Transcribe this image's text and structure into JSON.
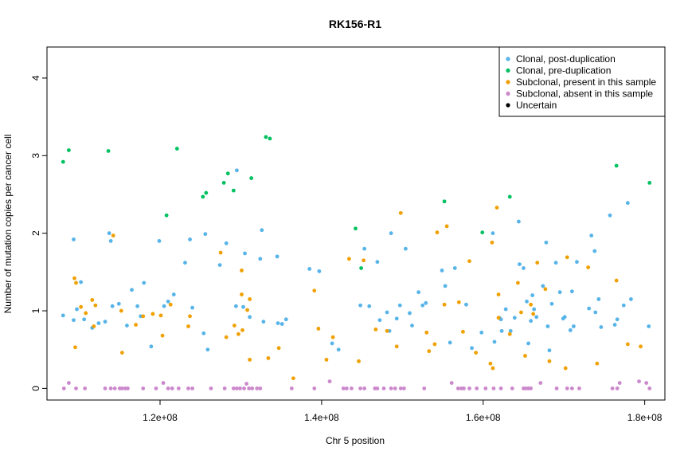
{
  "chart_data": {
    "type": "scatter",
    "title": "RK156-R1",
    "xlabel": "Chr 5 position",
    "ylabel": "Number of mutation copies per cancer cell",
    "xlim": [
      106000000,
      182500000
    ],
    "ylim": [
      -0.15,
      4.4
    ],
    "x_ticks": [
      120000000,
      140000000,
      160000000,
      180000000
    ],
    "x_tick_labels": [
      "1.2e+08",
      "1.4e+08",
      "1.6e+08",
      "1.8e+08"
    ],
    "y_ticks": [
      0,
      1,
      2,
      3,
      4
    ],
    "y_tick_labels": [
      "0",
      "1",
      "2",
      "3",
      "4"
    ],
    "grid": false,
    "legend_position": "top-right",
    "series": [
      {
        "name": "Clonal, post-duplication",
        "color": "#56B4E9",
        "points": [
          [
            108.0,
            0.94
          ],
          [
            109.3,
            1.92
          ],
          [
            109.3,
            0.88
          ],
          [
            109.7,
            1.02
          ],
          [
            110.2,
            1.37
          ],
          [
            110.6,
            0.89
          ],
          [
            111.6,
            0.78
          ],
          [
            112.4,
            0.84
          ],
          [
            113.2,
            0.86
          ],
          [
            113.7,
            2.0
          ],
          [
            113.9,
            1.9
          ],
          [
            114.1,
            1.06
          ],
          [
            114.9,
            1.09
          ],
          [
            115.9,
            0.81
          ],
          [
            116.5,
            1.27
          ],
          [
            117.2,
            1.06
          ],
          [
            117.6,
            0.93
          ],
          [
            118.0,
            1.36
          ],
          [
            118.9,
            0.54
          ],
          [
            119.9,
            1.9
          ],
          [
            120.5,
            1.06
          ],
          [
            121.0,
            1.12
          ],
          [
            121.7,
            1.21
          ],
          [
            123.1,
            1.62
          ],
          [
            123.7,
            1.92
          ],
          [
            124.0,
            1.04
          ],
          [
            125.4,
            0.71
          ],
          [
            125.6,
            1.99
          ],
          [
            125.9,
            0.5
          ],
          [
            127.4,
            1.59
          ],
          [
            128.2,
            1.87
          ],
          [
            129.4,
            1.06
          ],
          [
            129.5,
            2.81
          ],
          [
            130.3,
            1.05
          ],
          [
            130.5,
            1.74
          ],
          [
            131.1,
            0.92
          ],
          [
            132.4,
            1.67
          ],
          [
            132.6,
            2.04
          ],
          [
            132.8,
            0.86
          ],
          [
            134.5,
            1.7
          ],
          [
            134.6,
            0.84
          ],
          [
            135.1,
            0.83
          ],
          [
            135.6,
            0.89
          ],
          [
            138.5,
            1.54
          ],
          [
            139.7,
            1.51
          ],
          [
            141.3,
            0.58
          ],
          [
            142.1,
            0.5
          ],
          [
            144.8,
            1.07
          ],
          [
            145.3,
            1.8
          ],
          [
            145.9,
            1.06
          ],
          [
            146.9,
            1.63
          ],
          [
            147.2,
            0.88
          ],
          [
            148.1,
            0.98
          ],
          [
            148.4,
            0.74
          ],
          [
            148.6,
            2.0
          ],
          [
            149.3,
            0.9
          ],
          [
            149.7,
            1.07
          ],
          [
            150.4,
            1.8
          ],
          [
            150.9,
            0.97
          ],
          [
            151.2,
            0.81
          ],
          [
            152.0,
            1.24
          ],
          [
            152.5,
            1.07
          ],
          [
            152.9,
            1.1
          ],
          [
            154.9,
            1.52
          ],
          [
            155.3,
            1.32
          ],
          [
            155.9,
            0.59
          ],
          [
            156.5,
            1.55
          ],
          [
            157.9,
            1.08
          ],
          [
            158.6,
            0.52
          ],
          [
            159.8,
            0.72
          ],
          [
            161.2,
            2.0
          ],
          [
            161.4,
            0.6
          ],
          [
            162.0,
            0.91
          ],
          [
            162.2,
            0.89
          ],
          [
            162.3,
            0.74
          ],
          [
            162.8,
            1.02
          ],
          [
            163.4,
            0.74
          ],
          [
            163.9,
            0.91
          ],
          [
            164.4,
            2.15
          ],
          [
            164.5,
            1.6
          ],
          [
            165.0,
            1.55
          ],
          [
            165.4,
            1.12
          ],
          [
            165.6,
            0.58
          ],
          [
            165.9,
            0.87
          ],
          [
            166.1,
            1.2
          ],
          [
            166.3,
            1.02
          ],
          [
            166.6,
            0.92
          ],
          [
            167.4,
            1.32
          ],
          [
            167.8,
            1.88
          ],
          [
            168.0,
            0.8
          ],
          [
            168.2,
            0.49
          ],
          [
            168.5,
            1.09
          ],
          [
            169.0,
            1.62
          ],
          [
            169.5,
            1.24
          ],
          [
            169.9,
            0.9
          ],
          [
            170.1,
            0.92
          ],
          [
            170.8,
            0.75
          ],
          [
            171.0,
            1.25
          ],
          [
            171.2,
            0.8
          ],
          [
            171.6,
            1.63
          ],
          [
            173.4,
            1.97
          ],
          [
            173.8,
            1.77
          ],
          [
            173.9,
            0.98
          ],
          [
            174.3,
            1.15
          ],
          [
            174.6,
            0.79
          ],
          [
            175.7,
            2.23
          ],
          [
            176.3,
            0.82
          ],
          [
            176.6,
            0.89
          ],
          [
            177.4,
            1.07
          ],
          [
            177.9,
            2.39
          ],
          [
            178.3,
            1.15
          ],
          [
            180.5,
            0.8
          ],
          [
            173.1,
            1.03
          ]
        ]
      },
      {
        "name": "Clonal, pre-duplication",
        "color": "#00C060",
        "points": [
          [
            108.0,
            2.92
          ],
          [
            108.7,
            3.07
          ],
          [
            113.6,
            3.06
          ],
          [
            120.8,
            2.23
          ],
          [
            122.1,
            3.09
          ],
          [
            125.3,
            2.47
          ],
          [
            125.7,
            2.52
          ],
          [
            127.9,
            2.65
          ],
          [
            128.4,
            2.77
          ],
          [
            129.1,
            2.55
          ],
          [
            131.3,
            2.71
          ],
          [
            133.1,
            3.24
          ],
          [
            133.6,
            3.22
          ],
          [
            144.2,
            2.06
          ],
          [
            144.9,
            1.55
          ],
          [
            155.2,
            2.41
          ],
          [
            159.9,
            2.01
          ],
          [
            163.3,
            2.47
          ],
          [
            176.5,
            2.87
          ],
          [
            180.6,
            2.65
          ]
        ]
      },
      {
        "name": "Subclonal, present in this sample",
        "color": "#F0A000",
        "points": [
          [
            109.4,
            1.42
          ],
          [
            109.6,
            1.36
          ],
          [
            109.5,
            0.53
          ],
          [
            110.2,
            1.05
          ],
          [
            110.8,
            0.97
          ],
          [
            111.6,
            1.14
          ],
          [
            111.8,
            0.8
          ],
          [
            112.0,
            1.07
          ],
          [
            114.2,
            1.97
          ],
          [
            115.2,
            1.0
          ],
          [
            115.3,
            0.46
          ],
          [
            117.0,
            0.82
          ],
          [
            117.9,
            0.93
          ],
          [
            119.1,
            0.96
          ],
          [
            120.1,
            0.94
          ],
          [
            120.3,
            0.68
          ],
          [
            121.3,
            1.08
          ],
          [
            123.5,
            0.8
          ],
          [
            123.7,
            0.93
          ],
          [
            127.5,
            1.75
          ],
          [
            128.2,
            0.66
          ],
          [
            129.2,
            0.81
          ],
          [
            129.7,
            0.7
          ],
          [
            130.1,
            1.21
          ],
          [
            130.2,
            0.75
          ],
          [
            130.1,
            1.52
          ],
          [
            130.8,
            1.01
          ],
          [
            131.1,
            1.15
          ],
          [
            131.1,
            0.37
          ],
          [
            133.4,
            0.39
          ],
          [
            134.7,
            0.52
          ],
          [
            136.5,
            0.13
          ],
          [
            139.1,
            1.26
          ],
          [
            139.6,
            0.77
          ],
          [
            140.6,
            0.37
          ],
          [
            141.4,
            0.66
          ],
          [
            143.4,
            1.67
          ],
          [
            144.6,
            0.35
          ],
          [
            145.2,
            1.65
          ],
          [
            146.7,
            0.76
          ],
          [
            148.1,
            0.74
          ],
          [
            149.3,
            0.54
          ],
          [
            149.8,
            2.26
          ],
          [
            153.0,
            0.72
          ],
          [
            153.3,
            0.48
          ],
          [
            154.0,
            0.57
          ],
          [
            154.3,
            2.01
          ],
          [
            155.2,
            1.08
          ],
          [
            155.5,
            2.09
          ],
          [
            157.0,
            1.11
          ],
          [
            157.5,
            0.73
          ],
          [
            158.3,
            1.64
          ],
          [
            159.1,
            0.46
          ],
          [
            160.9,
            0.32
          ],
          [
            161.2,
            0.26
          ],
          [
            161.1,
            1.88
          ],
          [
            161.7,
            2.33
          ],
          [
            161.9,
            0.91
          ],
          [
            161.9,
            1.21
          ],
          [
            163.3,
            0.7
          ],
          [
            164.3,
            1.36
          ],
          [
            164.7,
            0.98
          ],
          [
            165.2,
            0.42
          ],
          [
            165.9,
            1.08
          ],
          [
            166.7,
            1.62
          ],
          [
            167.7,
            1.28
          ],
          [
            168.2,
            0.35
          ],
          [
            170.2,
            0.26
          ],
          [
            170.4,
            1.69
          ],
          [
            173.0,
            1.56
          ],
          [
            174.1,
            0.32
          ],
          [
            176.5,
            1.39
          ],
          [
            177.9,
            0.57
          ],
          [
            179.5,
            0.54
          ],
          [
            166.2,
            0.96
          ]
        ]
      },
      {
        "name": "Subclonal, absent in this sample",
        "color": "#CC88CC",
        "points": [
          [
            108.1,
            0.0
          ],
          [
            108.7,
            0.07
          ],
          [
            109.6,
            0.0
          ],
          [
            110.7,
            0.0
          ],
          [
            113.2,
            0.0
          ],
          [
            113.9,
            0.0
          ],
          [
            114.4,
            0.0
          ],
          [
            115.0,
            0.0
          ],
          [
            115.3,
            0.0
          ],
          [
            115.7,
            0.0
          ],
          [
            116.0,
            0.0
          ],
          [
            117.9,
            0.0
          ],
          [
            119.5,
            0.0
          ],
          [
            120.4,
            0.07
          ],
          [
            121.0,
            0.0
          ],
          [
            121.5,
            0.0
          ],
          [
            122.3,
            0.0
          ],
          [
            123.5,
            0.0
          ],
          [
            124.0,
            0.0
          ],
          [
            126.3,
            0.0
          ],
          [
            128.0,
            0.0
          ],
          [
            129.1,
            0.0
          ],
          [
            129.5,
            0.0
          ],
          [
            129.9,
            0.0
          ],
          [
            130.4,
            0.0
          ],
          [
            130.7,
            0.06
          ],
          [
            131.0,
            0.0
          ],
          [
            131.4,
            0.0
          ],
          [
            132.0,
            0.0
          ],
          [
            132.4,
            0.0
          ],
          [
            136.3,
            0.0
          ],
          [
            139.1,
            0.0
          ],
          [
            141.0,
            0.09
          ],
          [
            142.7,
            0.0
          ],
          [
            143.1,
            0.0
          ],
          [
            143.7,
            0.0
          ],
          [
            144.8,
            0.0
          ],
          [
            145.3,
            0.0
          ],
          [
            146.6,
            0.0
          ],
          [
            146.9,
            0.0
          ],
          [
            147.7,
            0.0
          ],
          [
            148.6,
            0.0
          ],
          [
            149.1,
            0.0
          ],
          [
            149.8,
            0.0
          ],
          [
            150.2,
            0.0
          ],
          [
            152.7,
            0.0
          ],
          [
            156.1,
            0.07
          ],
          [
            156.9,
            0.0
          ],
          [
            157.3,
            0.0
          ],
          [
            157.6,
            0.0
          ],
          [
            158.3,
            0.0
          ],
          [
            159.2,
            0.0
          ],
          [
            160.3,
            0.0
          ],
          [
            161.3,
            0.0
          ],
          [
            162.2,
            0.0
          ],
          [
            163.6,
            0.0
          ],
          [
            165.0,
            0.0
          ],
          [
            165.3,
            0.0
          ],
          [
            165.6,
            0.0
          ],
          [
            165.9,
            0.0
          ],
          [
            167.1,
            0.07
          ],
          [
            169.1,
            0.0
          ],
          [
            170.4,
            0.0
          ],
          [
            171.0,
            0.0
          ],
          [
            171.9,
            0.0
          ],
          [
            176.0,
            0.0
          ],
          [
            176.6,
            0.0
          ],
          [
            176.9,
            0.07
          ],
          [
            179.3,
            0.09
          ],
          [
            180.2,
            0.07
          ],
          [
            180.6,
            0.0
          ]
        ]
      },
      {
        "name": "Uncertain",
        "color": "#000000",
        "points": []
      }
    ]
  }
}
